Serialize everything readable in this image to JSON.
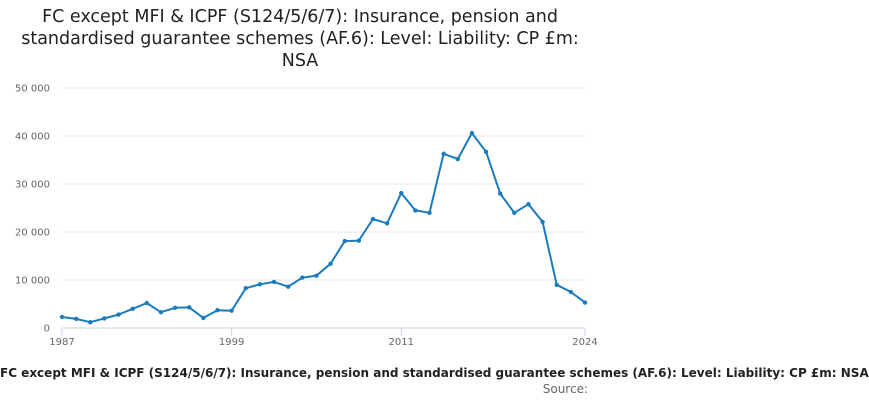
{
  "chart_data": {
    "type": "line",
    "title": "FC except MFI & ICPF (S124/5/6/7): Insurance, pension and standardised guarantee schemes (AF.6): Level: Liability: CP £m: NSA",
    "xlabel": "FC except MFI & ICPF (S124/5/6/7): Insurance, pension and standardised guarantee schemes (AF.6): Level: Liability: CP £m: NSA",
    "ylabel": "",
    "source_label": "Source:",
    "ylim": [
      0,
      50000
    ],
    "yticks": [
      0,
      10000,
      20000,
      30000,
      40000,
      50000
    ],
    "ytick_labels": [
      "0",
      "10 000",
      "20 000",
      "30 000",
      "40 000",
      "50 000"
    ],
    "xlim": [
      1987,
      2024
    ],
    "xticks": [
      1987,
      1999,
      2011,
      2024
    ],
    "xtick_labels": [
      "1987",
      "1999",
      "2011",
      "2024"
    ],
    "line_color": "#1a7bbd",
    "grid": true,
    "series": [
      {
        "name": "Liability",
        "x": [
          1987,
          1988,
          1989,
          1990,
          1991,
          1992,
          1993,
          1994,
          1995,
          1996,
          1997,
          1998,
          1999,
          2000,
          2001,
          2002,
          2003,
          2004,
          2005,
          2006,
          2007,
          2008,
          2009,
          2010,
          2011,
          2012,
          2013,
          2014,
          2015,
          2016,
          2017,
          2018,
          2019,
          2020,
          2021,
          2022,
          2023,
          2024
        ],
        "values": [
          2300,
          1900,
          1200,
          2000,
          2800,
          4000,
          5200,
          3300,
          4200,
          4300,
          2100,
          3700,
          3600,
          8300,
          9100,
          9600,
          8600,
          10500,
          10900,
          13400,
          18100,
          18200,
          22700,
          21800,
          28100,
          24500,
          24000,
          36300,
          35200,
          40600,
          36700,
          28000,
          24000,
          25800,
          22100,
          9000,
          7500,
          5300
        ]
      }
    ]
  }
}
